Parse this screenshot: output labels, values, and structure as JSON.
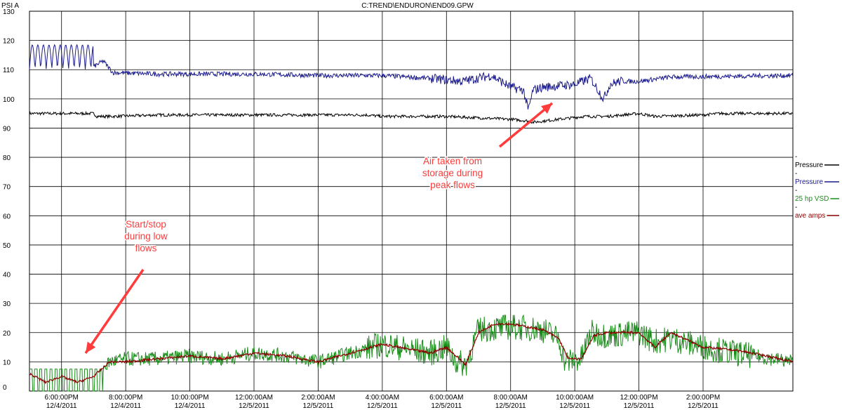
{
  "chart_data": {
    "type": "line",
    "title": "C:TREND\\ENDURON\\END09.GPW",
    "ylabel": "PSI A",
    "ylim": [
      0,
      130
    ],
    "yticks": [
      0,
      10,
      20,
      30,
      40,
      50,
      60,
      70,
      80,
      90,
      100,
      110,
      120,
      130
    ],
    "grid": true,
    "legend_position": "right",
    "xlim_hours": [
      -1.0,
      22.8
    ],
    "x_ticks": [
      {
        "h": 0,
        "time": "6:00:00PM",
        "date": "12/4/2011"
      },
      {
        "h": 2,
        "time": "8:00:00PM",
        "date": "12/4/2011"
      },
      {
        "h": 4,
        "time": "10:00:00PM",
        "date": "12/4/2011"
      },
      {
        "h": 6,
        "time": "12:00:00AM",
        "date": "12/5/2011"
      },
      {
        "h": 8,
        "time": "2:00:00AM",
        "date": "12/5/2011"
      },
      {
        "h": 10,
        "time": "4:00:00AM",
        "date": "12/5/2011"
      },
      {
        "h": 12,
        "time": "6:00:00AM",
        "date": "12/5/2011"
      },
      {
        "h": 14,
        "time": "8:00:00AM",
        "date": "12/5/2011"
      },
      {
        "h": 16,
        "time": "10:00:00AM",
        "date": "12/5/2011"
      },
      {
        "h": 18,
        "time": "12:00:00PM",
        "date": "12/5/2011"
      },
      {
        "h": 20,
        "time": "2:00:00PM",
        "date": "12/5/2011"
      }
    ],
    "series": [
      {
        "name": "Pressure",
        "color": "#000000",
        "x": [
          -1.0,
          1.0,
          1.1,
          1.6,
          3.0,
          6.0,
          8.0,
          9.5,
          10.0,
          11.8,
          12.0,
          14.0,
          14.5,
          14.7,
          15.5,
          16.3,
          17.0,
          18.0,
          18.5,
          20.0,
          20.5,
          22.8
        ],
        "y": [
          95,
          95,
          94,
          94,
          94.5,
          94.5,
          94.5,
          94.5,
          94,
          94,
          94,
          93,
          92.5,
          92,
          93,
          94,
          94,
          95,
          94,
          94.5,
          95,
          95
        ]
      },
      {
        "name": "Pressure",
        "color": "#1a1a8c",
        "x": [
          -1.0,
          1.0,
          1.3,
          1.6,
          3.0,
          6.0,
          8.0,
          10.0,
          11.5,
          12.5,
          13.4,
          14.0,
          14.4,
          14.55,
          14.7,
          15.0,
          16.0,
          16.5,
          16.9,
          17.1,
          17.4,
          18.0,
          19.0,
          22.8
        ],
        "y": [
          111,
          111,
          113,
          109,
          108.5,
          108.5,
          108,
          108,
          107,
          106,
          108,
          104,
          103,
          96,
          103,
          104,
          105,
          107,
          100,
          105,
          106,
          106,
          107.5,
          108
        ]
      },
      {
        "name": "25 hp VSD",
        "color": "#1a8c1a",
        "x": [
          -1.0,
          0.5,
          1.0,
          1.5,
          2.0,
          3.0,
          4.0,
          5.0,
          6.0,
          7.0,
          8.0,
          9.0,
          10.0,
          11.0,
          11.5,
          12.0,
          12.3,
          12.6,
          13.0,
          14.0,
          15.0,
          15.5,
          15.7,
          16.2,
          16.5,
          17.0,
          18.0,
          18.5,
          19.0,
          20.0,
          21.0,
          22.8
        ],
        "y": [
          5,
          5,
          4,
          10,
          11,
          11,
          12,
          11,
          13,
          12,
          10,
          13,
          16,
          14,
          13,
          15,
          10,
          9,
          21,
          22,
          21,
          18,
          10,
          11,
          20,
          19,
          20,
          17,
          18,
          15,
          13,
          10
        ]
      },
      {
        "name": "ave amps",
        "color": "#8b0000",
        "x": [
          -1.0,
          -0.5,
          0.0,
          0.5,
          1.0,
          1.5,
          2.0,
          3.0,
          4.0,
          5.0,
          6.0,
          7.0,
          8.0,
          9.0,
          10.0,
          11.0,
          11.5,
          12.0,
          12.3,
          12.6,
          13.0,
          13.5,
          14.0,
          15.0,
          15.5,
          15.8,
          16.2,
          16.6,
          17.0,
          18.0,
          18.5,
          19.0,
          20.0,
          21.0,
          22.0,
          22.8
        ],
        "y": [
          6,
          3,
          5,
          3,
          5,
          10,
          10,
          11,
          12,
          11,
          13,
          12,
          10,
          13,
          16,
          14,
          13,
          15,
          12,
          9,
          20,
          23,
          23,
          21,
          18,
          11,
          11,
          19,
          20,
          20,
          15,
          20,
          15,
          14,
          12,
          10
        ]
      }
    ],
    "annotations": [
      {
        "text": [
          "Start/stop",
          "during low",
          "flows"
        ]
      },
      {
        "text": [
          "Air taken from",
          "storage during",
          "peak flows"
        ]
      }
    ],
    "legend_marker": "-"
  }
}
